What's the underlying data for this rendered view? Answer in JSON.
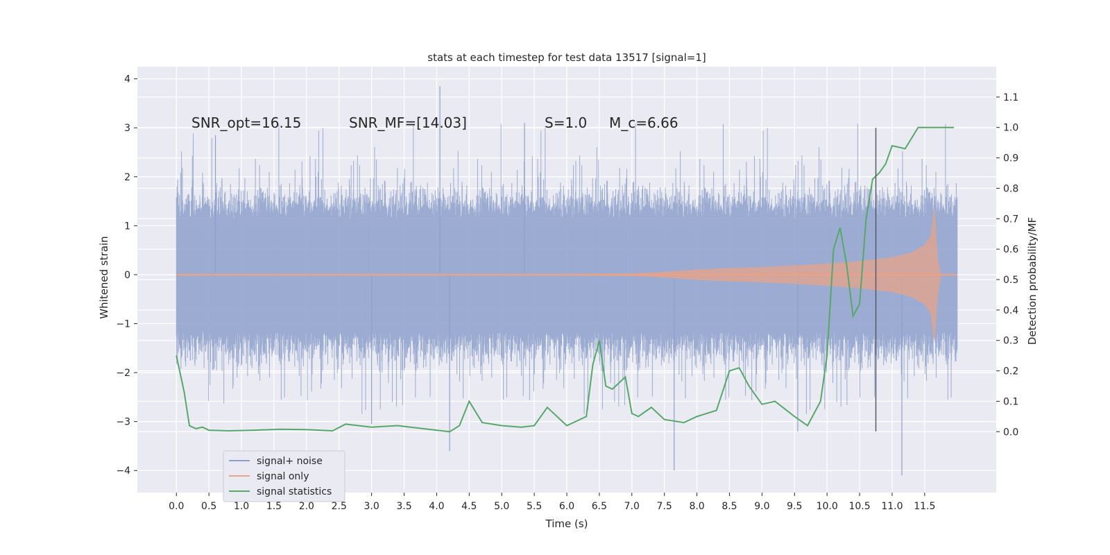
{
  "chart_data": {
    "type": "line",
    "title": "stats at each timestep for test data 13517 [signal=1]",
    "xlabel": "Time (s)",
    "ylabel": "Whitened strain",
    "y2label": "Detection probability/MF",
    "xlim": [
      -0.6,
      12.6
    ],
    "ylim": [
      -4.45,
      4.25
    ],
    "y2lim": [
      -0.2,
      1.2
    ],
    "x_ticks": [
      "0.0",
      "0.5",
      "1.0",
      "1.5",
      "2.0",
      "2.5",
      "3.0",
      "3.5",
      "4.0",
      "4.5",
      "5.0",
      "5.5",
      "6.0",
      "6.5",
      "7.0",
      "7.5",
      "8.0",
      "8.5",
      "9.0",
      "9.5",
      "10.0",
      "10.5",
      "11.0",
      "11.5"
    ],
    "y_ticks": [
      "4",
      "3",
      "2",
      "1",
      "0",
      "−1",
      "−2",
      "−3",
      "−4"
    ],
    "y2_ticks": [
      "1.1",
      "1.0",
      "0.9",
      "0.8",
      "0.7",
      "0.6",
      "0.5",
      "0.4",
      "0.3",
      "0.2",
      "0.1",
      "0.0"
    ],
    "grid": true,
    "legend_position": "lower-left",
    "annotations": [
      {
        "text": "SNR_opt=16.15",
        "x": 0.2,
        "y": 3.1
      },
      {
        "text": "SNR_MF=[14.03]",
        "x": 2.6,
        "y": 3.1
      },
      {
        "text": "S=1.0",
        "x": 5.6,
        "y": 3.1
      },
      {
        "text": "M_c=6.66",
        "x": 6.6,
        "y": 3.1
      }
    ],
    "marker_line": {
      "x": 10.75,
      "y_top": 3.0,
      "y_bottom": -3.2
    },
    "series": [
      {
        "name": "signal+ noise",
        "color": "#8da0cb",
        "x_range": [
          0.0,
          12.0
        ],
        "typical_amplitude": 1.7,
        "spike_max": 3.85,
        "spike_min": -4.1
      },
      {
        "name": "signal only",
        "color": "#e8a48a",
        "x": [
          0,
          6.0,
          7.0,
          7.5,
          8.0,
          8.5,
          9.0,
          9.5,
          10.0,
          10.5,
          11.0,
          11.3,
          11.5,
          11.6,
          11.65,
          11.7,
          11.75,
          12.0
        ],
        "envelope": [
          0.01,
          0.01,
          0.02,
          0.05,
          0.1,
          0.13,
          0.15,
          0.18,
          0.22,
          0.27,
          0.35,
          0.45,
          0.6,
          0.8,
          1.35,
          0.3,
          0.0,
          0.0
        ]
      },
      {
        "name": "signal statistics",
        "color": "#55a868",
        "x": [
          0.0,
          0.12,
          0.2,
          0.3,
          0.4,
          0.5,
          0.8,
          1.2,
          1.6,
          2.0,
          2.4,
          2.6,
          3.0,
          3.4,
          3.6,
          4.0,
          4.2,
          4.35,
          4.5,
          4.7,
          5.0,
          5.3,
          5.5,
          5.7,
          6.0,
          6.3,
          6.4,
          6.5,
          6.6,
          6.7,
          6.8,
          6.9,
          7.0,
          7.1,
          7.3,
          7.5,
          7.8,
          8.0,
          8.3,
          8.5,
          8.65,
          8.8,
          9.0,
          9.2,
          9.5,
          9.7,
          9.9,
          10.0,
          10.1,
          10.2,
          10.3,
          10.4,
          10.5,
          10.6,
          10.7,
          10.8,
          10.9,
          11.0,
          11.2,
          11.4,
          11.6,
          11.8,
          11.95
        ],
        "y": [
          0.25,
          0.13,
          0.02,
          0.01,
          0.015,
          0.005,
          0.003,
          0.005,
          0.008,
          0.007,
          0.003,
          0.025,
          0.015,
          0.02,
          0.015,
          0.005,
          0.0,
          0.02,
          0.1,
          0.03,
          0.02,
          0.015,
          0.02,
          0.08,
          0.02,
          0.05,
          0.22,
          0.3,
          0.15,
          0.14,
          0.16,
          0.18,
          0.06,
          0.05,
          0.08,
          0.04,
          0.03,
          0.05,
          0.07,
          0.2,
          0.21,
          0.15,
          0.09,
          0.1,
          0.05,
          0.02,
          0.1,
          0.25,
          0.6,
          0.67,
          0.55,
          0.38,
          0.42,
          0.7,
          0.83,
          0.85,
          0.88,
          0.94,
          0.93,
          1.0,
          1.0,
          1.0,
          1.0
        ]
      }
    ]
  }
}
